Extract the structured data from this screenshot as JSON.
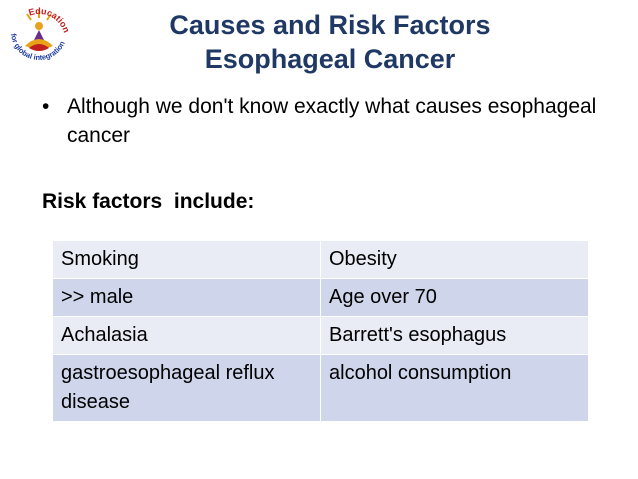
{
  "logo": {
    "arc_text_top": "Education",
    "arc_text_bottom": "for global integration",
    "colors": {
      "red": "#c0201e",
      "blue": "#1f3fa0",
      "gold": "#e8a21a",
      "purple": "#6a2c8e"
    }
  },
  "title": {
    "line1": "Causes and Risk Factors",
    "line2": "Esophageal Cancer"
  },
  "bullet": {
    "symbol": "•",
    "text": "Although we don't know exactly what causes esophageal cancer"
  },
  "subheading": "Risk factors  include:",
  "table": {
    "rows": [
      [
        "Smoking",
        "Obesity"
      ],
      [
        ">> male",
        "Age over 70"
      ],
      [
        "Achalasia",
        "Barrett's esophagus"
      ],
      [
        "gastroesophageal reflux disease",
        "alcohol consumption"
      ]
    ]
  },
  "colors": {
    "title": "#1f3864",
    "row_light": "#e9ebf5",
    "row_dark": "#cfd5ea",
    "table_border": "#6f83b5"
  }
}
